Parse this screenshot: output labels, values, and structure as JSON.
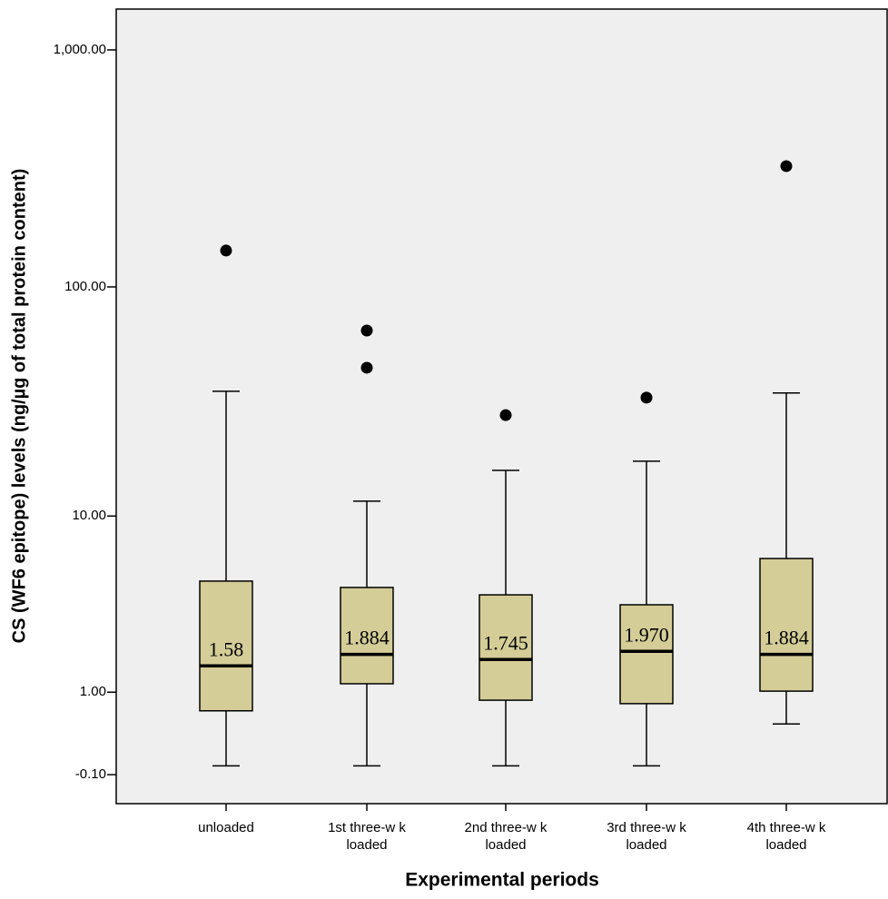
{
  "chart_data": {
    "type": "box",
    "y_label": "CS (WF6 epitope) levels (ng/µg of total protein content)",
    "x_label": "Experimental periods",
    "yscale": "log1p",
    "categories": [
      [
        "unloaded"
      ],
      [
        "1st three-w k",
        "loaded"
      ],
      [
        "2nd three-w k",
        "loaded"
      ],
      [
        "3rd three-w k",
        "loaded"
      ],
      [
        "4th three-w k",
        "loaded"
      ]
    ],
    "boxes": [
      {
        "whisker_low": -0.02,
        "q1": 0.67,
        "median": 1.58,
        "q3": 4.86,
        "whisker_high": 35.8,
        "outliers": [
          142.6
        ]
      },
      {
        "whisker_low": -0.02,
        "q1": 1.17,
        "median": 1.884,
        "q3": 4.51,
        "whisker_high": 11.7,
        "outliers": [
          65.2,
          45.2
        ]
      },
      {
        "whisker_low": -0.02,
        "q1": 0.85,
        "median": 1.745,
        "q3": 4.13,
        "whisker_high": 16.1,
        "outliers": [
          28.2
        ]
      },
      {
        "whisker_low": -0.02,
        "q1": 0.79,
        "median": 1.97,
        "q3": 3.66,
        "whisker_high": 17.7,
        "outliers": [
          33.6
        ]
      },
      {
        "whisker_low": 0.47,
        "q1": 1.02,
        "median": 1.884,
        "q3": 6.29,
        "whisker_high": 35.2,
        "outliers": [
          324
        ]
      }
    ],
    "median_labels": [
      "1.58",
      "1.884",
      "1.745",
      "1.970",
      "1.884"
    ],
    "color": "#d4cd97",
    "ylim": [
      -0.32,
      1485
    ],
    "yticks": [
      {
        "value": 1000,
        "label": "1,000.00"
      },
      {
        "value": 100,
        "label": "100.00"
      },
      {
        "value": 10,
        "label": "10.00"
      },
      {
        "value": 1,
        "label": "1.00"
      },
      {
        "value": -0.1,
        "label": "-0.10"
      }
    ],
    "grid": false
  }
}
